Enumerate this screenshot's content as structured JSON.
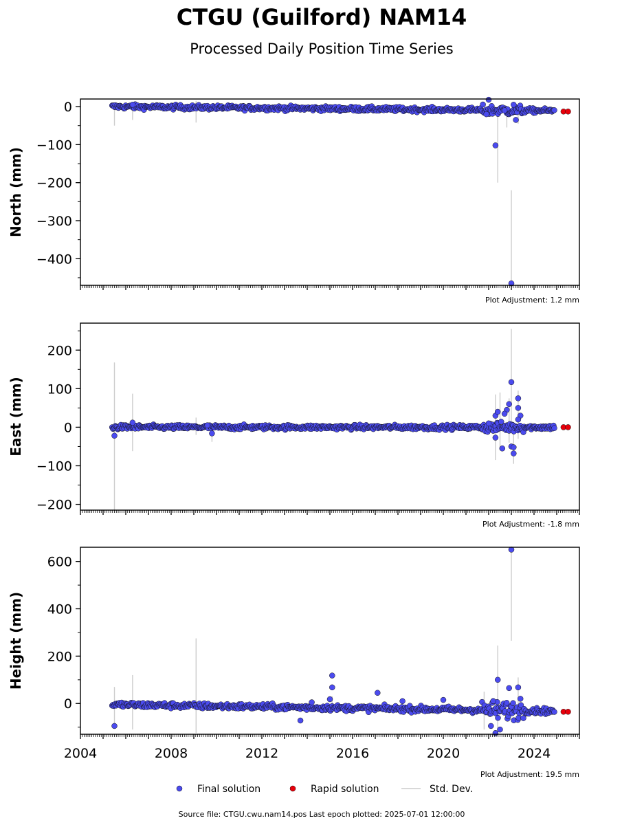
{
  "title": "CTGU (Guilford) NAM14",
  "subtitle": "Processed Daily Position Time Series",
  "footer": "Source file: CTGU.cwu.nam14.pos  Last epoch plotted: 2025-07-01 12:00:00",
  "legend": [
    {
      "label": "Final solution",
      "color": "#4b4bef",
      "kind": "marker"
    },
    {
      "label": "Rapid solution",
      "color": "#e8000b",
      "kind": "marker"
    },
    {
      "label": "Std. Dev.",
      "color": "#cccccc",
      "kind": "line"
    }
  ],
  "colors": {
    "final": "#4b4bef",
    "rapid": "#e8000b",
    "stddev": "#cccccc",
    "edge": "#111111"
  },
  "chart_data": [
    {
      "type": "scatter",
      "ylabel": "North (mm)",
      "adjustment": "Plot Adjustment: 1.2 mm",
      "xlim": [
        2004.0,
        2026.0
      ],
      "ylim": [
        -470,
        20
      ],
      "yticks": [
        0,
        -100,
        -200,
        -300,
        -400
      ],
      "ytick_labels": [
        "0",
        "−100",
        "−200",
        "−300",
        "−400"
      ],
      "trend": {
        "start": [
          2005.4,
          0
        ],
        "end": [
          2024.9,
          -11
        ]
      },
      "outliers": [
        [
          2022.0,
          18
        ],
        [
          2022.3,
          -102
        ],
        [
          2023.0,
          -465
        ],
        [
          2023.2,
          -35
        ],
        [
          2022.7,
          -10
        ],
        [
          2023.1,
          5
        ],
        [
          2021.9,
          -20
        ],
        [
          2006.3,
          5
        ]
      ],
      "stddev_bars": [
        [
          2005.5,
          10,
          -50
        ],
        [
          2006.3,
          10,
          -35
        ],
        [
          2009.1,
          15,
          -42
        ],
        [
          2022.4,
          -5,
          -200
        ],
        [
          2023.0,
          -220,
          -470
        ],
        [
          2022.8,
          0,
          -55
        ],
        [
          2023.3,
          -5,
          -45
        ]
      ],
      "rapid": [
        [
          2025.3,
          -13
        ],
        [
          2025.5,
          -13
        ]
      ]
    },
    {
      "type": "scatter",
      "ylabel": "East (mm)",
      "adjustment": "Plot Adjustment: -1.8 mm",
      "xlim": [
        2004.0,
        2026.0
      ],
      "ylim": [
        -215,
        270
      ],
      "yticks": [
        200,
        100,
        0,
        -100,
        -200
      ],
      "ytick_labels": [
        "200",
        "100",
        "0",
        "−100",
        "−200"
      ],
      "trend": {
        "start": [
          2005.4,
          0
        ],
        "end": [
          2024.9,
          0
        ]
      },
      "outliers": [
        [
          2005.5,
          -22
        ],
        [
          2006.3,
          12
        ],
        [
          2009.6,
          5
        ],
        [
          2009.8,
          -16
        ],
        [
          2022.3,
          30
        ],
        [
          2022.4,
          40
        ],
        [
          2022.6,
          -55
        ],
        [
          2022.8,
          45
        ],
        [
          2022.9,
          60
        ],
        [
          2023.0,
          117
        ],
        [
          2023.0,
          -50
        ],
        [
          2023.1,
          -52
        ],
        [
          2023.1,
          -68
        ],
        [
          2023.3,
          75
        ],
        [
          2023.3,
          50
        ],
        [
          2023.4,
          30
        ],
        [
          2023.3,
          20
        ],
        [
          2022.3,
          -27
        ],
        [
          2022.0,
          10
        ],
        [
          2022.7,
          35
        ]
      ],
      "stddev_bars": [
        [
          2005.5,
          168,
          -215
        ],
        [
          2006.3,
          87,
          -62
        ],
        [
          2009.1,
          25,
          -20
        ],
        [
          2009.8,
          10,
          -38
        ],
        [
          2022.3,
          85,
          -85
        ],
        [
          2022.5,
          90,
          -60
        ],
        [
          2023.0,
          255,
          -15
        ],
        [
          2023.1,
          10,
          -95
        ],
        [
          2023.3,
          95,
          -30
        ],
        [
          2022.9,
          75,
          -40
        ]
      ],
      "rapid": [
        [
          2025.3,
          0
        ],
        [
          2025.5,
          0
        ]
      ]
    },
    {
      "type": "scatter",
      "ylabel": "Height (mm)",
      "adjustment": "Plot Adjustment: 19.5 mm",
      "xlim": [
        2004.0,
        2026.0
      ],
      "ylim": [
        -130,
        660
      ],
      "yticks": [
        600,
        400,
        200,
        0
      ],
      "ytick_labels": [
        "600",
        "400",
        "200",
        "0"
      ],
      "xticks": [
        2004,
        2008,
        2012,
        2016,
        2020,
        2024
      ],
      "xtick_labels": [
        "2004",
        "2008",
        "2012",
        "2016",
        "2020",
        "2024"
      ],
      "trend": {
        "start": [
          2005.4,
          -5
        ],
        "end": [
          2024.9,
          -32
        ]
      },
      "outliers": [
        [
          2005.5,
          -95
        ],
        [
          2013.7,
          -72
        ],
        [
          2014.2,
          5
        ],
        [
          2015.1,
          118
        ],
        [
          2015.1,
          68
        ],
        [
          2015.0,
          18
        ],
        [
          2017.1,
          45
        ],
        [
          2018.2,
          10
        ],
        [
          2020.0,
          15
        ],
        [
          2022.1,
          -95
        ],
        [
          2022.4,
          100
        ],
        [
          2022.9,
          65
        ],
        [
          2023.0,
          650
        ],
        [
          2023.3,
          68
        ],
        [
          2023.4,
          20
        ],
        [
          2022.2,
          10
        ],
        [
          2022.5,
          -110
        ],
        [
          2022.3,
          -125
        ]
      ],
      "stddev_bars": [
        [
          2005.5,
          70,
          -100
        ],
        [
          2006.3,
          120,
          -110
        ],
        [
          2009.1,
          275,
          -125
        ],
        [
          2022.4,
          245,
          -125
        ],
        [
          2023.0,
          655,
          265
        ],
        [
          2023.3,
          110,
          -60
        ],
        [
          2021.8,
          50,
          -110
        ],
        [
          2015.1,
          30,
          -30
        ]
      ],
      "rapid": [
        [
          2025.3,
          -35
        ],
        [
          2025.5,
          -35
        ]
      ]
    }
  ]
}
